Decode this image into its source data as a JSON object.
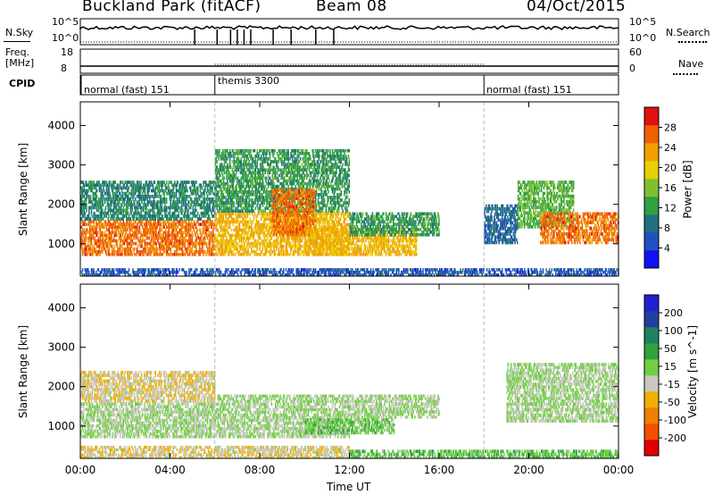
{
  "header": {
    "station": "Buckland Park (fitACF)",
    "beam": "Beam 08",
    "date": "04/Oct/2015"
  },
  "top_panels": {
    "nsky_label": "N.Sky",
    "nsky_ticks": [
      "10^5",
      "10^0"
    ],
    "nsky_right_ticks": [
      "10^5",
      "10^0"
    ],
    "nsearch_label": "N.Search",
    "freq_label": "Freq.",
    "freq_unit": "[MHz]",
    "freq_ticks": [
      "18",
      "8"
    ],
    "nave_ticks": [
      "60",
      "0"
    ],
    "nave_label": "Nave",
    "cpid_label": "CPID",
    "cpid_segments": [
      {
        "start_hour": 0,
        "label": "normal (fast) 151"
      },
      {
        "start_hour": 6,
        "label": "themis 3300"
      },
      {
        "start_hour": 18,
        "label": "normal (fast) 151"
      }
    ]
  },
  "chart_data": [
    {
      "type": "heatmap",
      "variable": "Power",
      "ylabel": "Slant Range [km]",
      "ylim": [
        180,
        4600
      ],
      "yticks": [
        1000,
        2000,
        3000,
        4000
      ],
      "xlim": [
        0,
        24
      ],
      "xticks": [
        "00:00",
        "04:00",
        "08:00",
        "12:00",
        "16:00",
        "20:00",
        "00:00"
      ],
      "colorbar": {
        "label": "Power [dB]",
        "range": [
          0,
          32
        ],
        "ticks": [
          "4",
          "8",
          "12",
          "16",
          "20",
          "24",
          "28"
        ],
        "colors": [
          "#1010f0",
          "#2050c0",
          "#207080",
          "#30a040",
          "#80c030",
          "#e8d000",
          "#f0a000",
          "#f06000",
          "#e01010"
        ]
      },
      "echo_regions": [
        {
          "t0": 0,
          "t1": 6,
          "r0": 700,
          "r1": 1600,
          "level": 26
        },
        {
          "t0": 0,
          "t1": 6,
          "r0": 1600,
          "r1": 2600,
          "level": 10
        },
        {
          "t0": 6,
          "t1": 12,
          "r0": 700,
          "r1": 1800,
          "level": 22
        },
        {
          "t0": 6,
          "t1": 12,
          "r0": 1800,
          "r1": 3400,
          "level": 12
        },
        {
          "t0": 8.5,
          "t1": 10.5,
          "r0": 1200,
          "r1": 2400,
          "level": 26
        },
        {
          "t0": 10,
          "t1": 15,
          "r0": 700,
          "r1": 1400,
          "level": 22
        },
        {
          "t0": 12,
          "t1": 16,
          "r0": 1200,
          "r1": 1800,
          "level": 12
        },
        {
          "t0": 18,
          "t1": 19.5,
          "r0": 1000,
          "r1": 2000,
          "level": 8
        },
        {
          "t0": 19.5,
          "t1": 22,
          "r0": 1400,
          "r1": 2600,
          "level": 14
        },
        {
          "t0": 20.5,
          "t1": 24,
          "r0": 1000,
          "r1": 1800,
          "level": 26
        },
        {
          "t0": 0,
          "t1": 24,
          "r0": 180,
          "r1": 380,
          "level": 6
        }
      ],
      "vertical_markers_hours": [
        6,
        18
      ]
    },
    {
      "type": "heatmap",
      "variable": "Velocity",
      "ylabel": "Slant Range [km]",
      "ylim": [
        180,
        4600
      ],
      "yticks": [
        1000,
        2000,
        3000,
        4000
      ],
      "xlim": [
        0,
        24
      ],
      "xlabel": "Time UT",
      "xticks": [
        "00:00",
        "04:00",
        "08:00",
        "12:00",
        "16:00",
        "20:00",
        "00:00"
      ],
      "colorbar": {
        "label": "Velocity [m s^-1]",
        "range": [
          -250,
          250
        ],
        "ticks": [
          "200",
          "100",
          "50",
          "15",
          "-15",
          "-50",
          "-100",
          "-200"
        ],
        "colors": [
          "#e00000",
          "#f05000",
          "#f08000",
          "#f0b000",
          "#c8c8c0",
          "#70d040",
          "#30a040",
          "#208060",
          "#2040a0",
          "#2020d0"
        ]
      },
      "echo_regions": [
        {
          "t0": 0,
          "t1": 6,
          "r0": 700,
          "r1": 1600,
          "level": 0
        },
        {
          "t0": 0,
          "t1": 6,
          "r0": 1600,
          "r1": 2400,
          "level": -40
        },
        {
          "t0": 6,
          "t1": 12,
          "r0": 700,
          "r1": 1800,
          "level": 0
        },
        {
          "t0": 10,
          "t1": 14,
          "r0": 800,
          "r1": 1200,
          "level": 30
        },
        {
          "t0": 12,
          "t1": 16,
          "r0": 1200,
          "r1": 1800,
          "level": 0
        },
        {
          "t0": 19,
          "t1": 24,
          "r0": 1100,
          "r1": 2600,
          "level": 0
        },
        {
          "t0": 0,
          "t1": 12,
          "r0": 180,
          "r1": 500,
          "level": -40
        },
        {
          "t0": 12,
          "t1": 24,
          "r0": 180,
          "r1": 400,
          "level": 40
        }
      ],
      "vertical_markers_hours": [
        6,
        18
      ]
    }
  ]
}
